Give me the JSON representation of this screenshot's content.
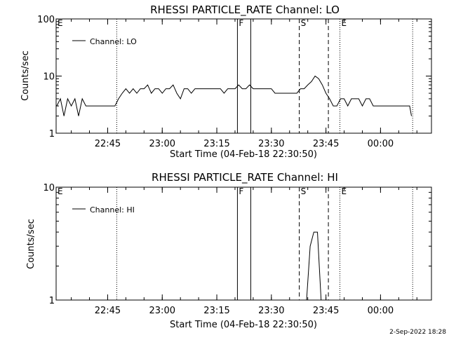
{
  "chart_data": [
    {
      "type": "line",
      "title": "RHESSI PARTICLE_RATE Channel: LO",
      "xlabel": "Start Time (04-Feb-18 22:30:50)",
      "ylabel": "Counts/sec",
      "yscale": "log",
      "ylim": [
        1,
        100
      ],
      "y_ticks": [
        "1",
        "10",
        "100"
      ],
      "xlim": [
        "22:30:50",
        "00:14:00"
      ],
      "x_ticks": [
        "22:45",
        "23:00",
        "23:15",
        "23:30",
        "23:45",
        "00:00"
      ],
      "legend": {
        "label": "Channel: LO",
        "position": "top-left"
      },
      "markers": [
        {
          "label": "E",
          "time": "22:30:50",
          "style": "dotted",
          "print_label": true
        },
        {
          "label": "",
          "time": "22:47:30",
          "style": "dotted",
          "print_label": false
        },
        {
          "label": "F",
          "time": "23:20:40",
          "style": "solid",
          "print_label": true
        },
        {
          "label": "",
          "time": "23:24:20",
          "style": "solid",
          "print_label": false
        },
        {
          "label": "S",
          "time": "23:37:40",
          "style": "dashed",
          "print_label": true
        },
        {
          "label": "",
          "time": "23:45:40",
          "style": "dashed",
          "print_label": false
        },
        {
          "label": "E",
          "time": "23:48:50",
          "style": "dotted",
          "print_label": true
        },
        {
          "label": "",
          "time": "00:08:50",
          "style": "dotted",
          "print_label": false
        }
      ],
      "series": [
        {
          "name": "Channel: LO",
          "x": [
            "22:31:00",
            "22:32:00",
            "22:33:00",
            "22:34:00",
            "22:35:00",
            "22:36:00",
            "22:37:00",
            "22:38:00",
            "22:39:00",
            "22:40:00",
            "22:41:00",
            "22:42:00",
            "22:43:00",
            "22:44:00",
            "22:45:00",
            "22:46:00",
            "22:47:00",
            "22:48:00",
            "22:49:00",
            "22:50:00",
            "22:51:00",
            "22:52:00",
            "22:53:00",
            "22:54:00",
            "22:55:00",
            "22:56:00",
            "22:57:00",
            "22:58:00",
            "22:59:00",
            "23:00:00",
            "23:01:00",
            "23:02:00",
            "23:03:00",
            "23:04:00",
            "23:05:00",
            "23:06:00",
            "23:07:00",
            "23:08:00",
            "23:09:00",
            "23:10:00",
            "23:11:00",
            "23:12:00",
            "23:13:00",
            "23:14:00",
            "23:15:00",
            "23:16:00",
            "23:17:00",
            "23:18:00",
            "23:19:00",
            "23:20:00",
            "23:21:00",
            "23:22:00",
            "23:23:00",
            "23:24:00",
            "23:25:00",
            "23:26:00",
            "23:27:00",
            "23:28:00",
            "23:29:00",
            "23:30:00",
            "23:31:00",
            "23:32:00",
            "23:33:00",
            "23:34:00",
            "23:35:00",
            "23:36:00",
            "23:37:00",
            "23:38:00",
            "23:39:00",
            "23:40:00",
            "23:41:00",
            "23:42:00",
            "23:43:00",
            "23:44:00",
            "23:45:00",
            "23:46:00",
            "23:47:00",
            "23:48:00",
            "23:49:00",
            "23:50:00",
            "23:51:00",
            "23:52:00",
            "23:53:00",
            "23:54:00",
            "23:55:00",
            "23:56:00",
            "23:57:00",
            "23:58:00",
            "23:59:00",
            "00:00:00",
            "00:01:00",
            "00:02:00",
            "00:03:00",
            "00:04:00",
            "00:05:00",
            "00:06:00",
            "00:07:00",
            "00:08:00",
            "00:08:30"
          ],
          "y": [
            3,
            4,
            2,
            4,
            3,
            4,
            2,
            4,
            3,
            3,
            3,
            3,
            3,
            3,
            3,
            3,
            3,
            4,
            5,
            6,
            5,
            6,
            5,
            6,
            6,
            7,
            5,
            6,
            6,
            5,
            6,
            6,
            7,
            5,
            4,
            6,
            6,
            5,
            6,
            6,
            6,
            6,
            6,
            6,
            6,
            6,
            5,
            6,
            6,
            6,
            7,
            6,
            6,
            7,
            6,
            6,
            6,
            6,
            6,
            6,
            5,
            5,
            5,
            5,
            5,
            5,
            5,
            6,
            6,
            7,
            8,
            10,
            9,
            7,
            5,
            4,
            3,
            3,
            4,
            4,
            3,
            4,
            4,
            4,
            3,
            4,
            4,
            3,
            3,
            3,
            3,
            3,
            3,
            3,
            3,
            3,
            3,
            3,
            2
          ]
        }
      ]
    },
    {
      "type": "line",
      "title": "RHESSI PARTICLE_RATE Channel: HI",
      "xlabel": "Start Time (04-Feb-18 22:30:50)",
      "ylabel": "Counts/sec",
      "yscale": "log",
      "ylim": [
        1,
        10
      ],
      "y_ticks": [
        "1",
        "10"
      ],
      "xlim": [
        "22:30:50",
        "00:14:00"
      ],
      "x_ticks": [
        "22:45",
        "23:00",
        "23:15",
        "23:30",
        "23:45",
        "00:00"
      ],
      "legend": {
        "label": "Channel: HI",
        "position": "top-left"
      },
      "markers": [
        {
          "label": "E",
          "time": "22:30:50",
          "style": "dotted",
          "print_label": true
        },
        {
          "label": "",
          "time": "22:47:30",
          "style": "dotted",
          "print_label": false
        },
        {
          "label": "F",
          "time": "23:20:40",
          "style": "solid",
          "print_label": true
        },
        {
          "label": "",
          "time": "23:24:20",
          "style": "solid",
          "print_label": false
        },
        {
          "label": "S",
          "time": "23:37:40",
          "style": "dashed",
          "print_label": true
        },
        {
          "label": "",
          "time": "23:45:40",
          "style": "dashed",
          "print_label": false
        },
        {
          "label": "E",
          "time": "23:48:50",
          "style": "dotted",
          "print_label": true
        },
        {
          "label": "",
          "time": "00:08:50",
          "style": "dotted",
          "print_label": false
        }
      ],
      "series": [
        {
          "name": "Channel: HI",
          "x": [
            "23:39:40",
            "23:40:40",
            "23:41:40",
            "23:42:40",
            "23:43:40"
          ],
          "y": [
            1,
            3,
            4,
            4,
            1
          ]
        }
      ]
    }
  ],
  "footer": {
    "date": "2-Sep-2022 18:28"
  }
}
